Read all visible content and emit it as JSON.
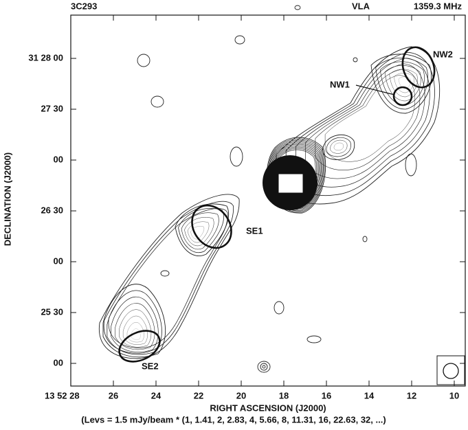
{
  "header": {
    "source": "3C293",
    "telescope": "VLA",
    "frequency": "1359.3 MHz"
  },
  "x_axis": {
    "label": "RIGHT ASCENSION (J2000)",
    "ticks": [
      "13 52 28",
      "26",
      "24",
      "22",
      "20",
      "18",
      "16",
      "14",
      "12",
      "10"
    ]
  },
  "y_axis": {
    "label": "DECLINATION (J2000)",
    "ticks": [
      "31 28 00",
      "27 30",
      "00",
      "26 30",
      "00",
      "25 30",
      "00"
    ]
  },
  "annotations": {
    "nw2": "NW2",
    "nw1": "NW1",
    "se1": "SE1",
    "se2": "SE2"
  },
  "caption": "(Levs = 1.5 mJy/beam * (1, 1.41, 2, 2.83, 4, 5.66, 8, 11.31, 16, 22.63, 32, ...)"
}
